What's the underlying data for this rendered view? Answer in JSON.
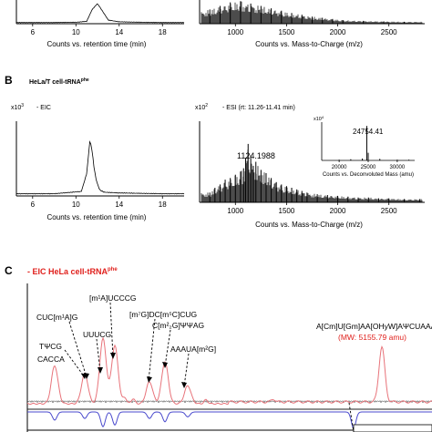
{
  "panel_a": {
    "eic_xaxis_label": "Counts vs. retention time (min)",
    "eic_xticks": [
      "6",
      "10",
      "14",
      "18"
    ],
    "ms_xaxis_label": "Counts vs. Mass-to-Charge (m/z)",
    "ms_xticks": [
      "1000",
      "1500",
      "2000",
      "2500"
    ]
  },
  "panel_b": {
    "letter": "B",
    "sample_title": "HeLa/T cell-tRNA",
    "sample_title_sup": "phe",
    "eic_scale": "x10",
    "eic_scale_exp": "3",
    "eic_label": "- EIC",
    "eic_xaxis_label": "Counts vs. retention time (min)",
    "eic_xticks": [
      "6",
      "10",
      "14",
      "18"
    ],
    "ms_scale": "x10",
    "ms_scale_exp": "2",
    "ms_label": "- ESI (rt: 11.26-11.41 min)",
    "ms_peak_label": "1124.1988",
    "ms_xaxis_label": "Counts vs. Mass-to-Charge (m/z)",
    "ms_xticks": [
      "1000",
      "1500",
      "2000",
      "2500"
    ],
    "inset_scale": "x10",
    "inset_scale_exp": "4",
    "inset_peak_label": "24754.41",
    "inset_xticks": [
      "20000",
      "25000",
      "30000"
    ],
    "inset_xaxis_label": "Counts vs. Deconvoluted Mass (amu)"
  },
  "panel_c": {
    "letter": "C",
    "title": "- EIC HeLa cell-tRNA",
    "title_sup": "phe",
    "labels": [
      {
        "text": "CACCA"
      },
      {
        "text": "TΨCG"
      },
      {
        "text": "CUC[m¹A]G"
      },
      {
        "text": "UUUCG"
      },
      {
        "text": "[m¹A]UCCCG"
      },
      {
        "text": "[m⁷G]DC[m⁵C]CUG"
      },
      {
        "text": "C[m²₂G]ΨΨAG"
      },
      {
        "text": "AAAUA[m²G]"
      },
      {
        "text": "A[Cm]U[Gm]AA[OHyW]AΨCUAAAG"
      }
    ],
    "mw_label": "(MW: 5155.79 amu)",
    "colors": {
      "top_trace": "#e8737a",
      "bottom_trace": "#4a4acd",
      "title": "#e0201c",
      "mw": "#e0201c"
    }
  },
  "chart_data": [
    {
      "type": "line",
      "panel": "A",
      "subplot": "EIC",
      "xlabel": "Counts vs. retention time (min)",
      "xlim": [
        4.5,
        20
      ],
      "x": [
        4.5,
        8,
        10,
        11,
        11.5,
        12,
        12.5,
        13,
        14,
        16,
        18,
        20
      ],
      "y": [
        0.05,
        0.05,
        0.06,
        0.1,
        0.6,
        0.85,
        0.5,
        0.15,
        0.08,
        0.06,
        0.05,
        0.05
      ]
    },
    {
      "type": "bar",
      "panel": "A",
      "subplot": "MS",
      "xlabel": "Counts vs. Mass-to-Charge (m/z)",
      "xlim": [
        650,
        2850
      ],
      "x": [
        650,
        750,
        850,
        950,
        1050,
        1150,
        1250,
        1350,
        1450,
        1550,
        1650,
        1750,
        1850,
        1950,
        2050,
        2250,
        2450,
        2650
      ],
      "y": [
        0.5,
        0.6,
        0.75,
        0.9,
        0.95,
        0.85,
        0.75,
        0.65,
        0.55,
        0.45,
        0.38,
        0.3,
        0.25,
        0.2,
        0.15,
        0.12,
        0.1,
        0.08
      ]
    },
    {
      "type": "line",
      "panel": "B",
      "subplot": "EIC",
      "xlabel": "Counts vs. retention time (min)",
      "xlim": [
        4.5,
        20
      ],
      "x": [
        4.5,
        8,
        10.5,
        11.0,
        11.3,
        11.5,
        11.7,
        11.9,
        12.2,
        12.6,
        14,
        18,
        20
      ],
      "y": [
        0.03,
        0.03,
        0.06,
        0.3,
        0.75,
        0.6,
        0.35,
        0.2,
        0.08,
        0.05,
        0.04,
        0.03,
        0.03
      ]
    },
    {
      "type": "bar",
      "panel": "B",
      "subplot": "MS",
      "xlabel": "Counts vs. Mass-to-Charge (m/z)",
      "xlim": [
        650,
        2850
      ],
      "x": [
        750,
        800,
        850,
        900,
        950,
        1000,
        1050,
        1080,
        1100,
        1124.1988,
        1150,
        1175,
        1200,
        1250,
        1300,
        1350,
        1400,
        1450,
        1500,
        1550,
        1600,
        1650,
        1700,
        1800,
        1900,
        2000,
        2100,
        2200,
        2300,
        2400,
        2500,
        2650,
        2800
      ],
      "y": [
        0.12,
        0.18,
        0.22,
        0.28,
        0.3,
        0.34,
        0.38,
        0.42,
        0.55,
        0.72,
        0.58,
        0.45,
        0.5,
        0.4,
        0.36,
        0.3,
        0.25,
        0.22,
        0.2,
        0.18,
        0.16,
        0.14,
        0.12,
        0.1,
        0.09,
        0.08,
        0.07,
        0.06,
        0.06,
        0.05,
        0.05,
        0.04,
        0.04
      ],
      "annotations": [
        "1124.1988"
      ]
    },
    {
      "type": "bar",
      "panel": "B",
      "subplot": "Deconvoluted inset",
      "xlabel": "Counts vs. Deconvoluted Mass (amu)",
      "xlim": [
        17000,
        33000
      ],
      "x": [
        20000,
        22000,
        24000,
        24754.41,
        25000,
        27000,
        30000,
        32000
      ],
      "y": [
        0.02,
        0.03,
        0.05,
        0.9,
        0.2,
        0.04,
        0.02,
        0.02
      ],
      "annotations": [
        "24754.41"
      ]
    },
    {
      "type": "line",
      "panel": "C",
      "subplot": "EIC digest (top trace)",
      "title": "- EIC HeLa cell-tRNA",
      "x": [
        60,
        93,
        113,
        126,
        164,
        181,
        206,
        419
      ],
      "y": [
        0.38,
        0.3,
        0.65,
        0.58,
        0.22,
        0.42,
        0.18,
        0.55
      ],
      "series": [
        {
          "name": "",
          "values": [
            0.38,
            0.3,
            0.65,
            0.58,
            0.22,
            0.42,
            0.18,
            0.55
          ]
        }
      ]
    }
  ]
}
